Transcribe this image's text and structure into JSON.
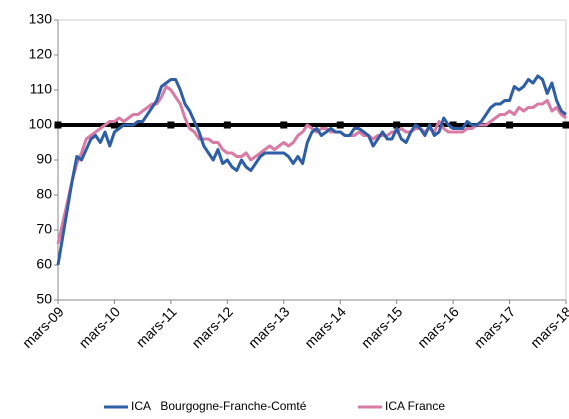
{
  "chart_data": {
    "type": "line",
    "categories": [
      "mars-09",
      null,
      null,
      null,
      null,
      null,
      null,
      null,
      null,
      null,
      null,
      null,
      "mars-10",
      null,
      null,
      null,
      null,
      null,
      null,
      null,
      null,
      null,
      null,
      null,
      "mars-11",
      null,
      null,
      null,
      null,
      null,
      null,
      null,
      null,
      null,
      null,
      null,
      "mars-12",
      null,
      null,
      null,
      null,
      null,
      null,
      null,
      null,
      null,
      null,
      null,
      "mars-13",
      null,
      null,
      null,
      null,
      null,
      null,
      null,
      null,
      null,
      null,
      null,
      "mars-14",
      null,
      null,
      null,
      null,
      null,
      null,
      null,
      null,
      null,
      null,
      null,
      "mars-15",
      null,
      null,
      null,
      null,
      null,
      null,
      null,
      null,
      null,
      null,
      null,
      "mars-16",
      null,
      null,
      null,
      null,
      null,
      null,
      null,
      null,
      null,
      null,
      null,
      "mars-17",
      null,
      null,
      null,
      null,
      null,
      null,
      null,
      null,
      null,
      null,
      null,
      "mars-18"
    ],
    "series": [
      {
        "name": "ICA   Bourgogne-Franche-Comté",
        "color": "#2e5fa6",
        "values": [
          60,
          68,
          76,
          84,
          91,
          90,
          93,
          96,
          97,
          95,
          98,
          94,
          98,
          99,
          100,
          100,
          100,
          101,
          101,
          103,
          105,
          107,
          111,
          112,
          113,
          113,
          110,
          106,
          104,
          101,
          98,
          94,
          92,
          90,
          93,
          89,
          90,
          88,
          87,
          90,
          88,
          87,
          89,
          91,
          92,
          92,
          92,
          92,
          92,
          91,
          89,
          91,
          89,
          95,
          98,
          99,
          97,
          98,
          99,
          98,
          98,
          97,
          97,
          99,
          99,
          98,
          97,
          94,
          96,
          98,
          96,
          96,
          99,
          96,
          95,
          98,
          100,
          99,
          97,
          100,
          97,
          98,
          102,
          100,
          99,
          99,
          99,
          101,
          100,
          100,
          101,
          103,
          105,
          106,
          106,
          107,
          107,
          111,
          110,
          111,
          113,
          112,
          114,
          113,
          109,
          112,
          107,
          104,
          103
        ]
      },
      {
        "name": "ICA France",
        "color": "#d87ba5",
        "values": [
          66,
          72,
          78,
          84,
          89,
          92,
          96,
          97,
          98,
          99,
          100,
          101,
          101,
          102,
          101,
          102,
          103,
          103,
          104,
          105,
          106,
          106,
          108,
          111,
          110,
          108,
          106,
          102,
          99,
          98,
          96,
          96,
          96,
          95,
          95,
          93,
          92,
          92,
          91,
          91,
          92,
          90,
          91,
          92,
          93,
          94,
          93,
          94,
          95,
          94,
          95,
          97,
          98,
          100,
          99,
          98,
          99,
          99,
          98,
          98,
          98,
          97,
          97,
          97,
          98,
          97,
          97,
          96,
          97,
          97,
          97,
          98,
          98,
          99,
          98,
          98,
          99,
          99,
          98,
          99,
          98,
          101,
          99,
          98,
          98,
          98,
          98,
          99,
          99,
          100,
          100,
          100,
          101,
          102,
          103,
          103,
          104,
          103,
          105,
          104,
          105,
          105,
          106,
          106,
          107,
          104,
          105,
          103,
          102
        ]
      }
    ],
    "reference": {
      "value": 100,
      "color": "#000000"
    },
    "ylim": [
      50,
      130
    ],
    "yticks": [
      50,
      60,
      70,
      80,
      90,
      100,
      110,
      120,
      130
    ],
    "grid": false,
    "legend": "bottom"
  }
}
